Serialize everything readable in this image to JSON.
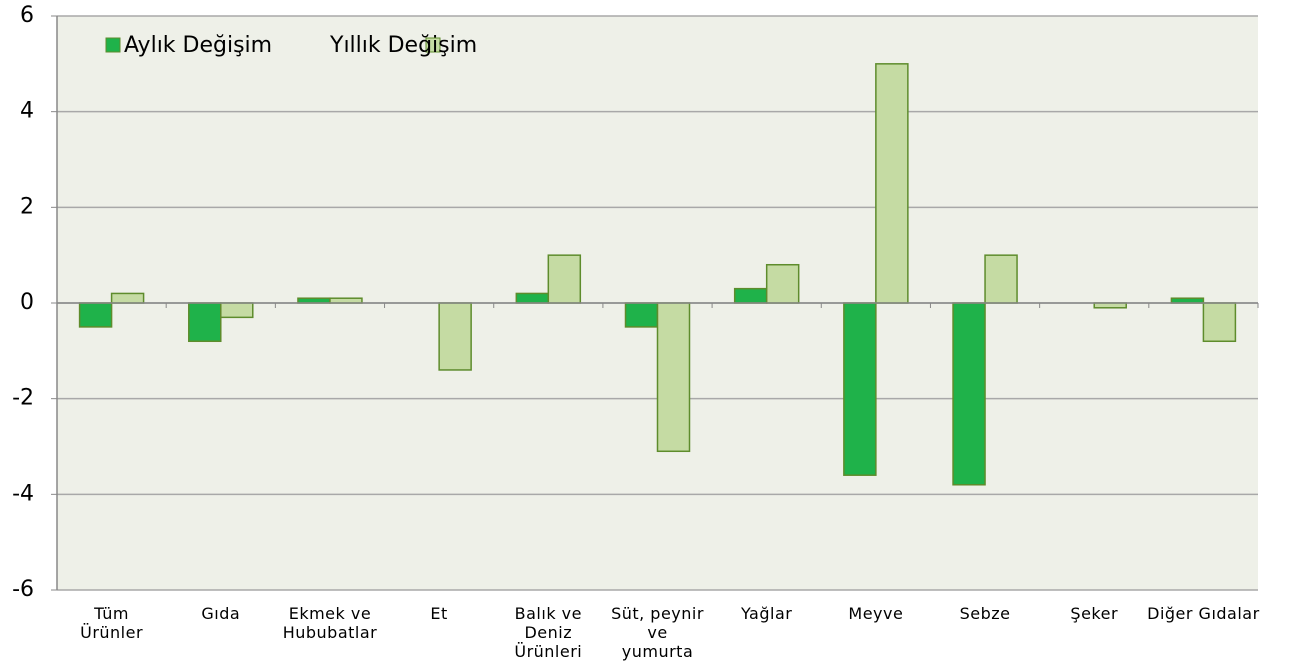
{
  "chart_data": {
    "type": "bar",
    "categories": [
      "Tüm\nÜrünler",
      "Gıda",
      "Ekmek ve\nHububatlar",
      "Et",
      "Balık ve\nDeniz\nÜrünleri",
      "Süt, peynir\nve\nyumurta",
      "Yağlar",
      "Meyve",
      "Sebze",
      "Şeker",
      "Diğer Gıdalar"
    ],
    "series": [
      {
        "name": "Aylık Değişim",
        "color": "#1fb24a",
        "values": [
          -0.5,
          -0.8,
          0.1,
          0,
          0.2,
          -0.5,
          0.3,
          -3.6,
          -3.8,
          0,
          0.1
        ]
      },
      {
        "name": "Yıllık Değişim",
        "color": "#c5dba3",
        "values": [
          0.2,
          -0.3,
          0.1,
          -1.4,
          1.0,
          -3.1,
          0.8,
          5.0,
          1.0,
          -0.1,
          -0.8
        ]
      }
    ],
    "ylim": [
      -6,
      6
    ],
    "yticks": [
      -6,
      -4,
      -2,
      0,
      2,
      4,
      6
    ],
    "grid": true,
    "legend": "top-left"
  }
}
